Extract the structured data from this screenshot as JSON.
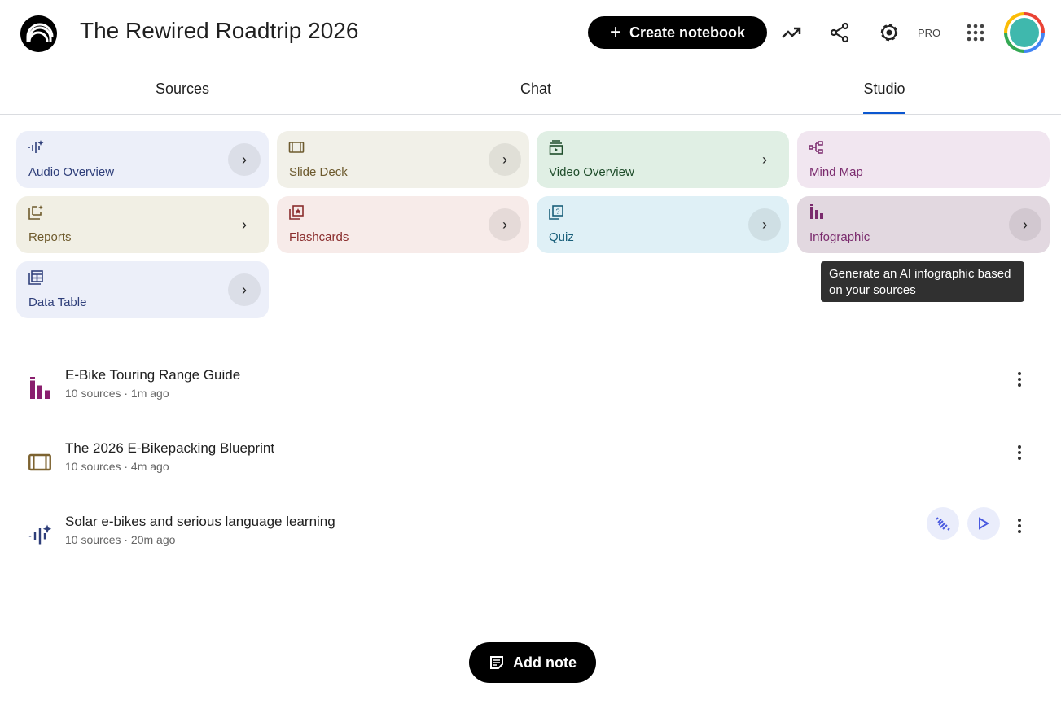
{
  "header": {
    "title": "The Rewired Roadtrip 2026",
    "create_label": "Create notebook",
    "pro_label": "PRO",
    "icons": [
      "analytics-icon",
      "share-icon",
      "settings-icon",
      "apps-grid-icon",
      "avatar"
    ]
  },
  "tabs": [
    {
      "label": "Sources"
    },
    {
      "label": "Chat"
    },
    {
      "label": "Studio",
      "active": true
    }
  ],
  "studio_tools": [
    {
      "label": "Audio Overview",
      "icon": "audio-waveform-icon",
      "bg": "#eceff9",
      "color": "#2f3f7a"
    },
    {
      "label": "Slide Deck",
      "icon": "slides-icon",
      "bg": "#f1f0e8",
      "color": "#6d5a2e"
    },
    {
      "label": "Video Overview",
      "icon": "video-icon",
      "bg": "#e0efe4",
      "color": "#1f4d2b"
    },
    {
      "label": "Mind Map",
      "icon": "mind-map-icon",
      "bg": "#f1e6f0",
      "color": "#7a2a6d"
    },
    {
      "label": "Reports",
      "icon": "reports-icon",
      "bg": "#f1efe4",
      "color": "#6e5a2c"
    },
    {
      "label": "Flashcards",
      "icon": "flashcards-icon",
      "bg": "#f7ebe9",
      "color": "#8a2d2d"
    },
    {
      "label": "Quiz",
      "icon": "quiz-icon",
      "bg": "#dff0f6",
      "color": "#195f7a"
    },
    {
      "label": "Infographic",
      "icon": "infographic-icon",
      "bg": "#e2d8e0",
      "color": "#7a2a6d"
    },
    {
      "label": "Data Table",
      "icon": "data-table-icon",
      "bg": "#eceff9",
      "color": "#2f3f7a"
    }
  ],
  "tooltip": "Generate an AI infographic based on your sources",
  "outputs": [
    {
      "title": "E-Bike Touring Range Guide",
      "meta": "10 sources · 1m ago",
      "icon": "infographic-icon",
      "color": "#8a1f6e"
    },
    {
      "title": "The 2026 E-Bikepacking Blueprint",
      "meta": "10 sources · 4m ago",
      "icon": "slides-icon",
      "color": "#7d6330"
    },
    {
      "title": "Solar e-bikes and serious language learning",
      "meta": "10 sources · 20m ago",
      "icon": "audio-waveform-icon",
      "color": "#2f3f7a"
    }
  ],
  "add_note_label": "Add note"
}
